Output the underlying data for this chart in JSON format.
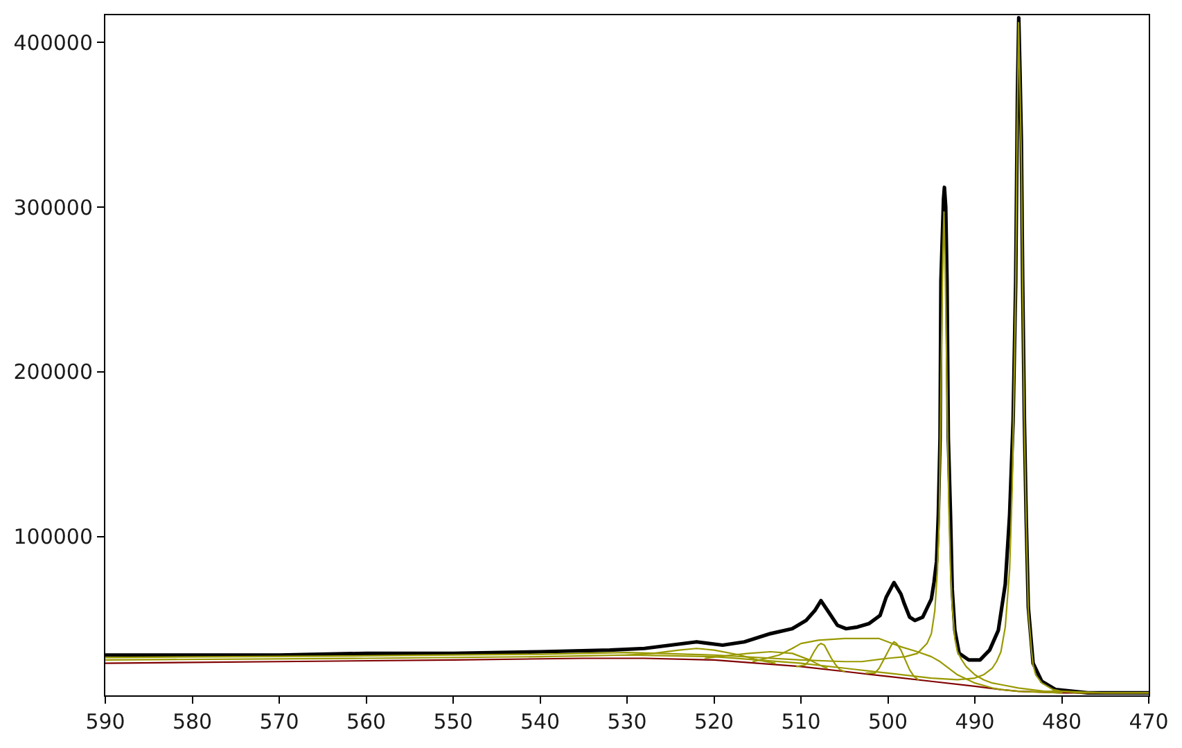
{
  "chart_data": {
    "type": "line",
    "xlim": [
      590,
      470
    ],
    "xticks": [
      590,
      580,
      570,
      560,
      550,
      540,
      530,
      520,
      510,
      500,
      490,
      480,
      470
    ],
    "ylim": [
      3500,
      416500
    ],
    "yticks": [
      100000,
      200000,
      300000,
      400000
    ],
    "series": [
      {
        "color": "#000000",
        "x": [
          590,
          580,
          570,
          560,
          550,
          540,
          532,
          528,
          525,
          522,
          519,
          516.5,
          513.5,
          511,
          509.4,
          508.4,
          507.7,
          506.8,
          505.8,
          504.8,
          503.5,
          502.2,
          500.9,
          500.2,
          499.3,
          498.5,
          498.1,
          497.5,
          496.9,
          496,
          495,
          494.7,
          494.4,
          494.2,
          494.0,
          493.9,
          493.6,
          493.5,
          493.35,
          493.2,
          493.05,
          492.8,
          492.6,
          492.3,
          491.8,
          490.7,
          489.4,
          488.3,
          487.3,
          486.5,
          486.0,
          485.6,
          485.3,
          485.1,
          484.95,
          484.8,
          484.65,
          484.5,
          484.3,
          484.1,
          483.85,
          483.3,
          482.3,
          480.7,
          477,
          470
        ],
        "values": [
          28000,
          28000,
          28000,
          29000,
          29000,
          30000,
          31000,
          32000,
          34000,
          36000,
          34000,
          36000,
          41000,
          44000,
          49000,
          55000,
          61000,
          54000,
          46000,
          44000,
          45000,
          47000,
          52000,
          63000,
          72000,
          65000,
          59000,
          51000,
          49000,
          51000,
          62000,
          72000,
          85000,
          113000,
          160000,
          255000,
          305000,
          312000,
          300000,
          255000,
          160000,
          113000,
          68000,
          43000,
          29000,
          25000,
          25000,
          31000,
          43000,
          71000,
          113000,
          170000,
          255000,
          368000,
          415000,
          380000,
          340000,
          255000,
          170000,
          113000,
          57000,
          23000,
          12000,
          7000,
          5000,
          5000
        ]
      },
      {
        "color": "#800000",
        "x": [
          590,
          570,
          550,
          535,
          528,
          520,
          515,
          510,
          505,
          500,
          495,
          490,
          487,
          485,
          480,
          470
        ],
        "values": [
          23000,
          24000,
          25000,
          26000,
          26000,
          25000,
          23000,
          21000,
          18000,
          15000,
          12000,
          9000,
          7000,
          6000,
          5000,
          5000
        ]
      },
      {
        "color": "#999900",
        "x": [
          530,
          527,
          524,
          522,
          520,
          517,
          515,
          513
        ],
        "values": [
          28000,
          29000,
          31000,
          32000,
          31000,
          28000,
          25000,
          23000
        ]
      },
      {
        "color": "#999900",
        "x": [
          521,
          518,
          516,
          513.5,
          511,
          509,
          507.5,
          507
        ],
        "values": [
          26000,
          28000,
          29000,
          30000,
          29000,
          25000,
          21000,
          20000
        ]
      },
      {
        "color": "#999900",
        "x": [
          515.5,
          514,
          512.5,
          511,
          510,
          508,
          505,
          502,
          501,
          500,
          498.5,
          496.6,
          495,
          494,
          493,
          492,
          490,
          488,
          487,
          485,
          480
        ],
        "values": [
          24000,
          26000,
          28000,
          32000,
          35000,
          37000,
          38000,
          38000,
          38000,
          36000,
          33000,
          30000,
          27000,
          24000,
          20000,
          16000,
          11000,
          8000,
          7000,
          6000,
          5000
        ]
      },
      {
        "color": "#999900",
        "x": [
          510.5,
          509.5,
          509,
          508.5,
          508,
          507.7,
          507.3,
          507,
          506.5,
          506,
          505.5,
          505
        ],
        "values": [
          21000,
          22000,
          25000,
          30000,
          34000,
          35000,
          34000,
          31000,
          26000,
          22000,
          19000,
          18000
        ]
      },
      {
        "color": "#999900",
        "x": [
          502.5,
          501.5,
          501,
          500.5,
          500,
          499.6,
          499.3,
          499,
          498.5,
          498,
          497.5,
          497,
          496.5
        ],
        "values": [
          17000,
          17000,
          20000,
          25000,
          30000,
          34000,
          36000,
          35000,
          31000,
          25000,
          19000,
          15000,
          13000
        ]
      },
      {
        "color": "#999900",
        "x": [
          590,
          560,
          540,
          530,
          520,
          510,
          505,
          503,
          500,
          498,
          496.6,
          495.5,
          495,
          494.6,
          494.3,
          494.1,
          493.9,
          493.7,
          493.55,
          493.4,
          493.2,
          493.0,
          492.8,
          492.6,
          492.3,
          492,
          491.5,
          491,
          490,
          489,
          488,
          487,
          485,
          482,
          480,
          475,
          470
        ],
        "values": [
          26500,
          27500,
          28500,
          29500,
          28000,
          25000,
          24000,
          24000,
          26000,
          27000,
          29000,
          35000,
          41000,
          55000,
          80000,
          110000,
          190000,
          265000,
          297000,
          260000,
          190000,
          120000,
          80000,
          58000,
          38000,
          30000,
          25000,
          21000,
          16000,
          13000,
          11000,
          10000,
          8000,
          6000,
          6000,
          5000,
          5000
        ]
      },
      {
        "color": "#999900",
        "x": [
          590,
          560,
          540,
          530,
          520,
          510,
          505,
          500,
          495,
          492,
          490,
          489,
          488,
          487.5,
          487,
          486.5,
          486,
          485.7,
          485.5,
          485.3,
          485.15,
          484.97,
          484.8,
          484.65,
          484.5,
          484.3,
          484.1,
          483.85,
          483.5,
          483.3,
          483,
          482.3,
          481,
          480,
          478,
          470
        ],
        "values": [
          25000,
          26000,
          27000,
          28000,
          27000,
          23000,
          20000,
          17000,
          14000,
          13000,
          14000,
          16000,
          20000,
          24000,
          30000,
          45000,
          80000,
          130000,
          190000,
          250000,
          340000,
          412000,
          370000,
          330000,
          250000,
          165000,
          110000,
          55000,
          32000,
          22000,
          16000,
          11000,
          7000,
          6000,
          5000,
          5000
        ]
      }
    ]
  }
}
